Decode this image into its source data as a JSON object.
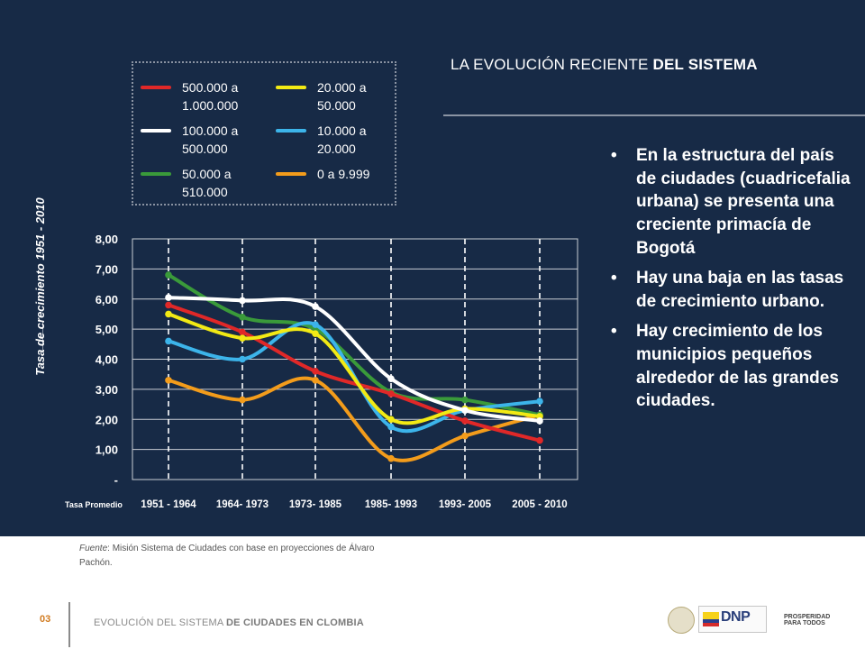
{
  "slide": {
    "title_regular": "LA EVOLUCIÓN RECIENTE ",
    "title_bold": "DEL SISTEMA",
    "bullets": [
      "En la estructura del país de ciudades (cuadricefalia urbana) se presenta una creciente primacía de Bogotá",
      "Hay una baja en las tasas de crecimiento urbano.",
      "Hay crecimiento de los municipios pequeños alrededor de las grandes ciudades."
    ],
    "y_axis_title": "Tasa de crecimiento 1951 - 2010",
    "source_label": "Fuente",
    "source_text": ": Misión Sistema de Ciudades con base en proyecciones de Álvaro Pachón.",
    "page_number": "03",
    "footer_regular": "EVOLUCIÓN DEL SISTEMA ",
    "footer_bold": "DE CIUDADES EN CLOMBIA",
    "logo_dnp": "DNP",
    "logo_prosperidad": [
      "PROSPERIDAD",
      "PARA TODOS"
    ]
  },
  "colors": {
    "background": "#172a46",
    "red": "#e02828",
    "yellow": "#f2ea14",
    "white": "#ffffff",
    "blue": "#3cb4ea",
    "green": "#3a9a3a",
    "orange": "#f39c1b",
    "page_number": "#d17b20"
  },
  "chart_data": {
    "type": "line",
    "categories": [
      "1951 - 1964",
      "1964- 1973",
      "1973- 1985",
      "1985- 1993",
      "1993- 2005",
      "2005 - 2010"
    ],
    "x_axis_row_label": "Tasa Promedio",
    "y_tick_labels": [
      "-",
      "1,00",
      "2,00",
      "3,00",
      "4,00",
      "5,00",
      "6,00",
      "7,00",
      "8,00"
    ],
    "ylim": [
      0,
      8
    ],
    "grid": true,
    "smooth": true,
    "legend_placement": "top, above chart, 2 columns",
    "series": [
      {
        "name_lines": [
          "500.000 a",
          "1.000.000"
        ],
        "color": "red",
        "values": [
          5.8,
          4.9,
          3.6,
          2.85,
          1.95,
          1.3
        ]
      },
      {
        "name_lines": [
          "20.000 a",
          "50.000"
        ],
        "color": "yellow",
        "values": [
          5.5,
          4.7,
          4.85,
          2.0,
          2.35,
          2.1
        ]
      },
      {
        "name_lines": [
          "100.000 a",
          "500.000"
        ],
        "color": "white",
        "values": [
          6.05,
          5.95,
          5.75,
          3.35,
          2.3,
          1.95
        ]
      },
      {
        "name_lines": [
          "10.000 a",
          "20.000"
        ],
        "color": "blue",
        "values": [
          4.6,
          4.0,
          5.15,
          1.75,
          2.3,
          2.6
        ]
      },
      {
        "name_lines": [
          "50.000 a",
          "510.000"
        ],
        "color": "green",
        "values": [
          6.8,
          5.4,
          5.0,
          2.9,
          2.65,
          2.15
        ]
      },
      {
        "name_lines": [
          "0 a 9.999"
        ],
        "color": "orange",
        "values": [
          3.3,
          2.65,
          3.3,
          0.7,
          1.45,
          2.15
        ]
      }
    ]
  }
}
